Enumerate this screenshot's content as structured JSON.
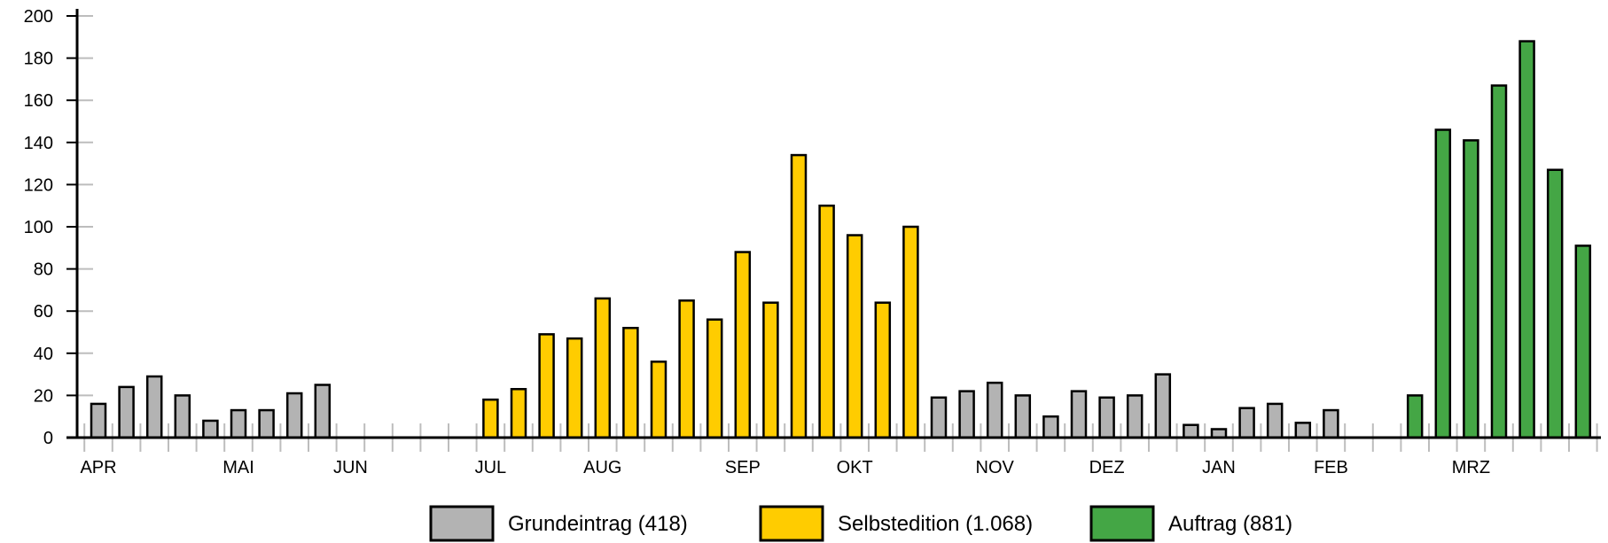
{
  "chart_data": {
    "type": "bar",
    "title": "",
    "xlabel": "",
    "ylabel": "",
    "ylim": [
      0,
      200
    ],
    "y_ticks": [
      0,
      20,
      40,
      60,
      80,
      100,
      120,
      140,
      160,
      180,
      200
    ],
    "grid": false,
    "legend_position": "bottom-center",
    "month_labels": [
      {
        "label": "APR",
        "slot": 0
      },
      {
        "label": "MAI",
        "slot": 5
      },
      {
        "label": "JUN",
        "slot": 9
      },
      {
        "label": "JUL",
        "slot": 14
      },
      {
        "label": "AUG",
        "slot": 18
      },
      {
        "label": "SEP",
        "slot": 23
      },
      {
        "label": "OKT",
        "slot": 27
      },
      {
        "label": "NOV",
        "slot": 32
      },
      {
        "label": "DEZ",
        "slot": 36
      },
      {
        "label": "JAN",
        "slot": 40
      },
      {
        "label": "FEB",
        "slot": 44
      },
      {
        "label": "MRZ",
        "slot": 49
      }
    ],
    "series": [
      {
        "name": "Grundeintrag (418)",
        "color": "#b3b3b3",
        "values": [
          16,
          24,
          29,
          20,
          8,
          13,
          13,
          21,
          25,
          null,
          null,
          null,
          null,
          null,
          null,
          null,
          null,
          null,
          null,
          null,
          null,
          null,
          null,
          null,
          null,
          null,
          null,
          null,
          null,
          null,
          19,
          22,
          26,
          20,
          10,
          22,
          19,
          20,
          30,
          6,
          4,
          14,
          16,
          7,
          13,
          null,
          null,
          null,
          null,
          null,
          null,
          null,
          null,
          null,
          null,
          null
        ]
      },
      {
        "name": "Selbstedition (1.068)",
        "color": "#ffcc00",
        "values": [
          null,
          null,
          null,
          null,
          null,
          null,
          null,
          null,
          null,
          null,
          null,
          null,
          null,
          null,
          18,
          23,
          49,
          47,
          66,
          52,
          36,
          65,
          56,
          88,
          64,
          134,
          110,
          96,
          64,
          100,
          null,
          null,
          null,
          null,
          null,
          null,
          null,
          null,
          null,
          null,
          null,
          null,
          null,
          null,
          null,
          null,
          null,
          null,
          null,
          null,
          null,
          null,
          null,
          null,
          null
        ]
      },
      {
        "name": "Auftrag (881)",
        "color": "#44a645",
        "values": [
          null,
          null,
          null,
          null,
          null,
          null,
          null,
          null,
          null,
          null,
          null,
          null,
          null,
          null,
          null,
          null,
          null,
          null,
          null,
          null,
          null,
          null,
          null,
          null,
          null,
          null,
          null,
          null,
          null,
          null,
          null,
          null,
          null,
          null,
          null,
          null,
          null,
          null,
          null,
          null,
          null,
          null,
          null,
          null,
          null,
          null,
          null,
          20,
          146,
          141,
          167,
          188,
          127,
          91
        ]
      }
    ]
  }
}
